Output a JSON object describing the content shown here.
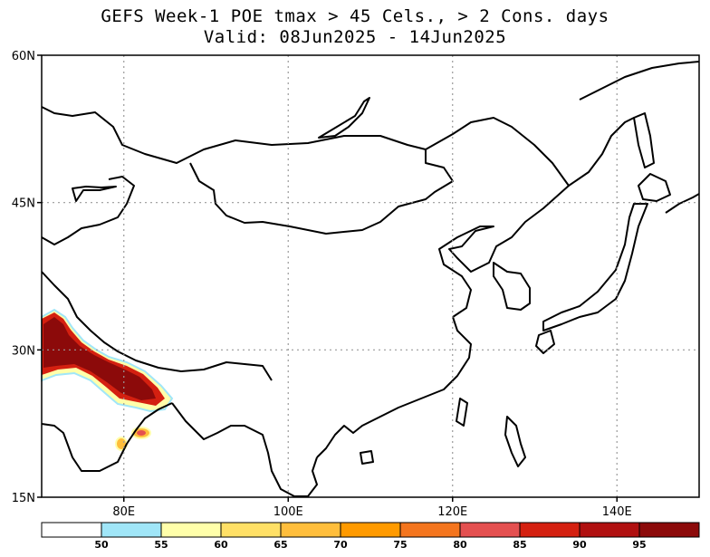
{
  "title": {
    "line1": "GEFS Week-1 POE tmax > 45 Cels., > 2 Cons. days",
    "line2": "Valid: 08Jun2025 - 14Jun2025"
  },
  "map": {
    "lon_range": [
      70,
      150
    ],
    "lat_range": [
      15,
      60
    ],
    "lat_ticks": [
      {
        "value": 60,
        "label": "60N"
      },
      {
        "value": 45,
        "label": "45N"
      },
      {
        "value": 30,
        "label": "30N"
      },
      {
        "value": 15,
        "label": "15N"
      }
    ],
    "lon_ticks": [
      {
        "value": 80,
        "label": "80E"
      },
      {
        "value": 100,
        "label": "100E"
      },
      {
        "value": 120,
        "label": "120E"
      },
      {
        "value": 140,
        "label": "140E"
      }
    ],
    "gridlines": "dotted"
  },
  "colorbar": {
    "bins": [
      {
        "color": "#ffffff",
        "label": "50"
      },
      {
        "color": "#a0e6f8",
        "label": "55"
      },
      {
        "color": "#ffffaa",
        "label": "60"
      },
      {
        "color": "#ffe066",
        "label": "65"
      },
      {
        "color": "#ffbe3c",
        "label": "70"
      },
      {
        "color": "#ff9a00",
        "label": "75"
      },
      {
        "color": "#f4751e",
        "label": "80"
      },
      {
        "color": "#e45050",
        "label": "85"
      },
      {
        "color": "#d42010",
        "label": "90"
      },
      {
        "color": "#b01010",
        "label": "95"
      },
      {
        "color": "#8c0a0a",
        "label": ""
      }
    ]
  }
}
